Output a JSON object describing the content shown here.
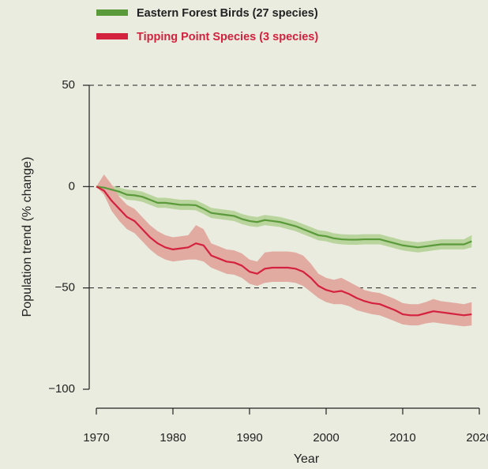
{
  "chart_data": {
    "type": "line",
    "xlabel": "Year",
    "ylabel": "Population trend (% change)",
    "x": [
      1970,
      1971,
      1972,
      1973,
      1974,
      1975,
      1976,
      1977,
      1978,
      1979,
      1980,
      1981,
      1982,
      1983,
      1984,
      1985,
      1986,
      1987,
      1988,
      1989,
      1990,
      1991,
      1992,
      1993,
      1994,
      1995,
      1996,
      1997,
      1998,
      1999,
      2000,
      2001,
      2002,
      2003,
      2004,
      2005,
      2006,
      2007,
      2008,
      2009,
      2010,
      2011,
      2012,
      2013,
      2014,
      2015,
      2016,
      2017,
      2018,
      2019
    ],
    "series": [
      {
        "name": "Eastern Forest Birds (27 species)",
        "color": "#5a9a3a",
        "band_color": "#b9d49c",
        "values": [
          0,
          -0.5,
          -1.5,
          -2.5,
          -4,
          -4.3,
          -5,
          -6.5,
          -8,
          -8,
          -8.5,
          -9,
          -9,
          -9.2,
          -11,
          -13,
          -13.5,
          -14,
          -14.5,
          -16,
          -17,
          -17.5,
          -16.5,
          -17,
          -17.5,
          -18.5,
          -19.5,
          -21,
          -22.5,
          -24,
          -24.5,
          -25.5,
          -26,
          -26.2,
          -26.2,
          -26,
          -26,
          -26,
          -27,
          -28,
          -29,
          -29.5,
          -30,
          -29.5,
          -29,
          -28.5,
          -28.5,
          -28.5,
          -28.5,
          -27
        ],
        "upper": [
          0,
          1,
          0.5,
          -0.5,
          -1.5,
          -1.8,
          -2.5,
          -4,
          -5.5,
          -5.5,
          -6,
          -6.5,
          -6.5,
          -6.7,
          -8.5,
          -10.5,
          -11,
          -11.5,
          -12,
          -13.5,
          -14.5,
          -15,
          -14,
          -14.5,
          -15,
          -16,
          -17,
          -18.5,
          -20,
          -21.5,
          -22,
          -23,
          -23.5,
          -23.7,
          -23.7,
          -23.5,
          -23.5,
          -23.5,
          -24.5,
          -25.5,
          -26.5,
          -27,
          -27.5,
          -27,
          -26.5,
          -26,
          -26,
          -26,
          -26,
          -24
        ],
        "lower": [
          0,
          -2,
          -3.5,
          -4.5,
          -6.5,
          -6.8,
          -7.5,
          -9,
          -10.5,
          -10.5,
          -11,
          -11.5,
          -11.5,
          -11.7,
          -13.5,
          -15.5,
          -16,
          -16.5,
          -17,
          -18.5,
          -19.5,
          -20,
          -19,
          -19.5,
          -20,
          -21,
          -22,
          -23.5,
          -25,
          -26.5,
          -27,
          -28,
          -28.5,
          -28.7,
          -28.7,
          -28.5,
          -28.5,
          -28.5,
          -29.5,
          -30.5,
          -31.5,
          -32,
          -32.5,
          -32,
          -31.5,
          -31,
          -31,
          -31,
          -31,
          -30
        ]
      },
      {
        "name": "Tipping Point Species (3 species)",
        "color": "#d4213d",
        "band_color": "#e2aba2",
        "values": [
          0,
          -2,
          -7,
          -11,
          -15,
          -17,
          -21,
          -25,
          -28,
          -30,
          -31,
          -30.5,
          -30,
          -28,
          -29,
          -34,
          -35.5,
          -37,
          -37.5,
          -39,
          -42,
          -43,
          -40.5,
          -40,
          -40,
          -40,
          -40.5,
          -42,
          -45,
          -49,
          -51,
          -52,
          -51.5,
          -53,
          -55,
          -56.5,
          -57.5,
          -58,
          -59.5,
          -61,
          -63,
          -63.5,
          -63.5,
          -62.5,
          -61.5,
          -62,
          -62.5,
          -63,
          -63.5,
          -63
        ],
        "upper": [
          0,
          6,
          1,
          -5,
          -9,
          -11,
          -15,
          -19,
          -22,
          -24,
          -25,
          -24.5,
          -24,
          -19,
          -21,
          -28,
          -29.5,
          -31,
          -31.5,
          -33,
          -36,
          -37,
          -32.5,
          -32,
          -32,
          -32,
          -32.5,
          -34,
          -38,
          -43,
          -45,
          -46,
          -45,
          -47,
          -49,
          -51,
          -52,
          -52.5,
          -54,
          -55.5,
          -57.5,
          -58,
          -58,
          -57,
          -55.5,
          -56.5,
          -57,
          -57.5,
          -58,
          -57
        ],
        "lower": [
          0,
          -4,
          -12,
          -17,
          -21,
          -23,
          -27,
          -31,
          -34,
          -36,
          -37,
          -36.5,
          -36,
          -36,
          -37,
          -40,
          -41.5,
          -43,
          -43.5,
          -45,
          -48,
          -49,
          -47.5,
          -47,
          -47,
          -47,
          -47.5,
          -49,
          -52,
          -55,
          -57,
          -58,
          -58,
          -59,
          -61,
          -62,
          -63,
          -63.5,
          -65,
          -66.5,
          -68,
          -68.5,
          -68.5,
          -67.5,
          -67,
          -67.5,
          -68,
          -68.5,
          -69,
          -68.5
        ]
      }
    ],
    "xlim": [
      1970,
      2020
    ],
    "xticks": [
      1970,
      1980,
      1990,
      2000,
      2010,
      2020
    ],
    "ylim": [
      -100,
      50
    ],
    "yticks": [
      {
        "value": -100,
        "label": "−100"
      },
      {
        "value": -50,
        "label": "−50"
      },
      0,
      50
    ],
    "grid": true
  }
}
